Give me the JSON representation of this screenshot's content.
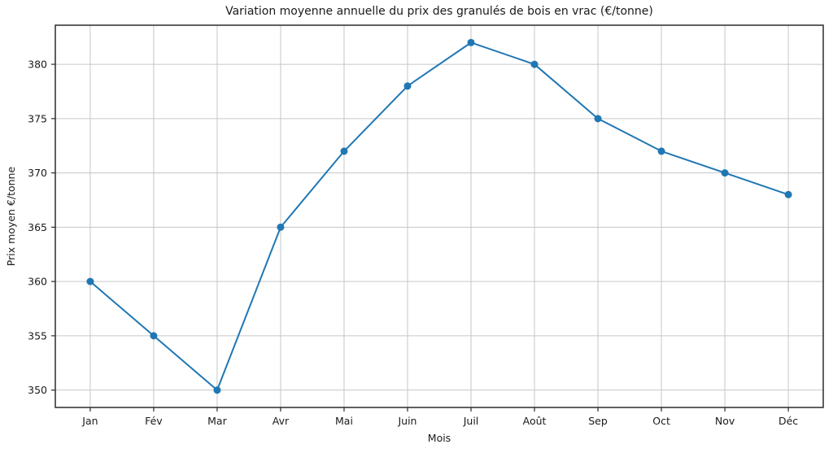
{
  "chart_data": {
    "type": "line",
    "title": "Variation moyenne annuelle du prix des granulés de bois en vrac (€/tonne)",
    "xlabel": "Mois",
    "ylabel": "Prix moyen €/tonne",
    "categories": [
      "Jan",
      "Fév",
      "Mar",
      "Avr",
      "Mai",
      "Juin",
      "Juil",
      "Août",
      "Sep",
      "Oct",
      "Nov",
      "Déc"
    ],
    "values": [
      360,
      355,
      350,
      365,
      372,
      378,
      382,
      380,
      375,
      372,
      370,
      368
    ],
    "yticks": [
      350,
      355,
      360,
      365,
      370,
      375,
      380
    ],
    "ylim": [
      348.4,
      383.6
    ],
    "x_margin": 0.55,
    "grid": true,
    "legend_position": "none",
    "colors": {
      "line": "#1f77b4",
      "marker": "#1f77b4",
      "grid": "#c6c6c6",
      "spine": "#2b2b2b",
      "background": "#ffffff",
      "text": "#1a1a1a"
    }
  }
}
